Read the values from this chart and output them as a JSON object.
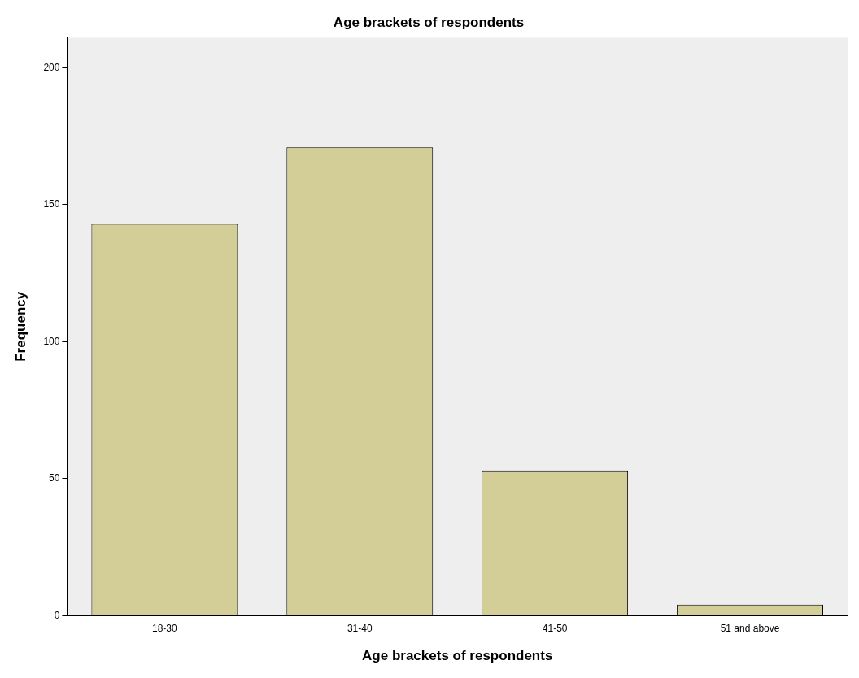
{
  "chart_data": {
    "type": "bar",
    "title": "Age brackets of respondents",
    "xlabel": "Age brackets of respondents",
    "ylabel": "Frequency",
    "categories": [
      "18-30",
      "31-40",
      "41-50",
      "51 and above"
    ],
    "values": [
      143,
      171,
      53,
      4
    ],
    "color": "#d3ce98",
    "ylim": [
      0,
      211
    ],
    "yticks": [
      0,
      50,
      100,
      150,
      200
    ],
    "grid": false,
    "legend": false
  }
}
